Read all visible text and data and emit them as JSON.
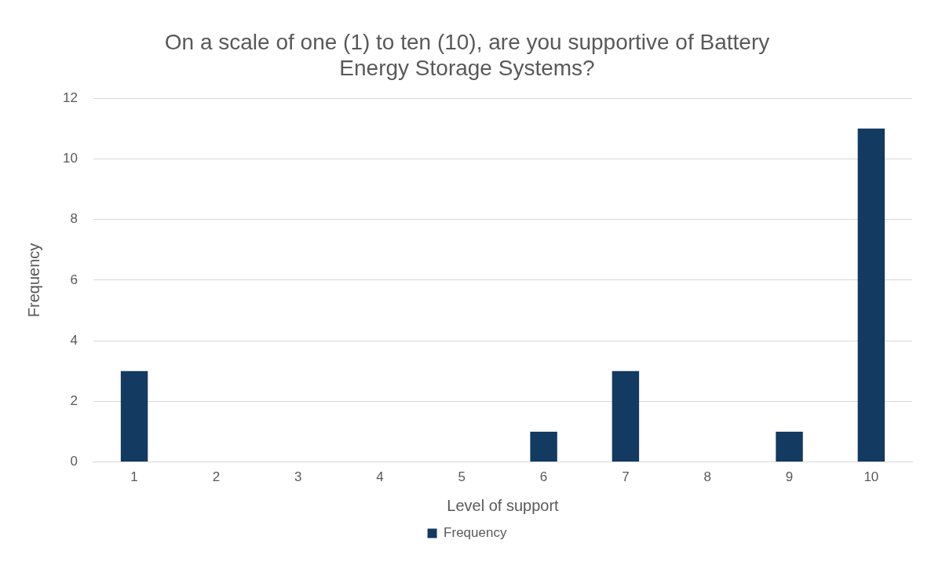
{
  "chart_data": {
    "type": "bar",
    "title": [
      "On a scale of one (1) to ten (10), are you supportive of Battery",
      "Energy Storage Systems?"
    ],
    "xlabel": "Level of support",
    "ylabel": "Frequency",
    "categories": [
      "1",
      "2",
      "3",
      "4",
      "5",
      "6",
      "7",
      "8",
      "9",
      "10"
    ],
    "series": [
      {
        "name": "Frequency",
        "color": "#133a60",
        "values": [
          3,
          0,
          0,
          0,
          0,
          1,
          3,
          0,
          1,
          11
        ]
      }
    ],
    "ylim": [
      0,
      12
    ],
    "yticks": [
      0,
      2,
      4,
      6,
      8,
      10,
      12
    ],
    "grid": "y",
    "legend": "bottom"
  }
}
